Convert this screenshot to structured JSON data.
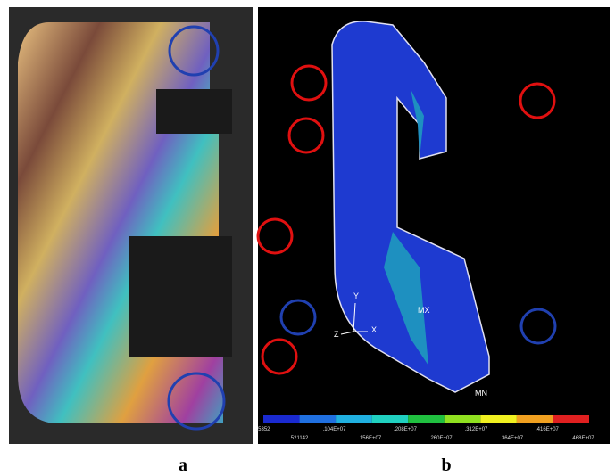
{
  "panels": [
    {
      "label": "a"
    },
    {
      "label": "b",
      "triad": [
        "Y",
        "X",
        "Z"
      ],
      "markers": [
        "MX",
        "MN"
      ],
      "legend": [
        ".5352",
        ".521142",
        ".104E+07",
        ".156E+07",
        ".208E+07",
        ".260E+07",
        ".312E+07",
        ".364E+07",
        ".416E+07",
        ".468E+07"
      ]
    }
  ]
}
